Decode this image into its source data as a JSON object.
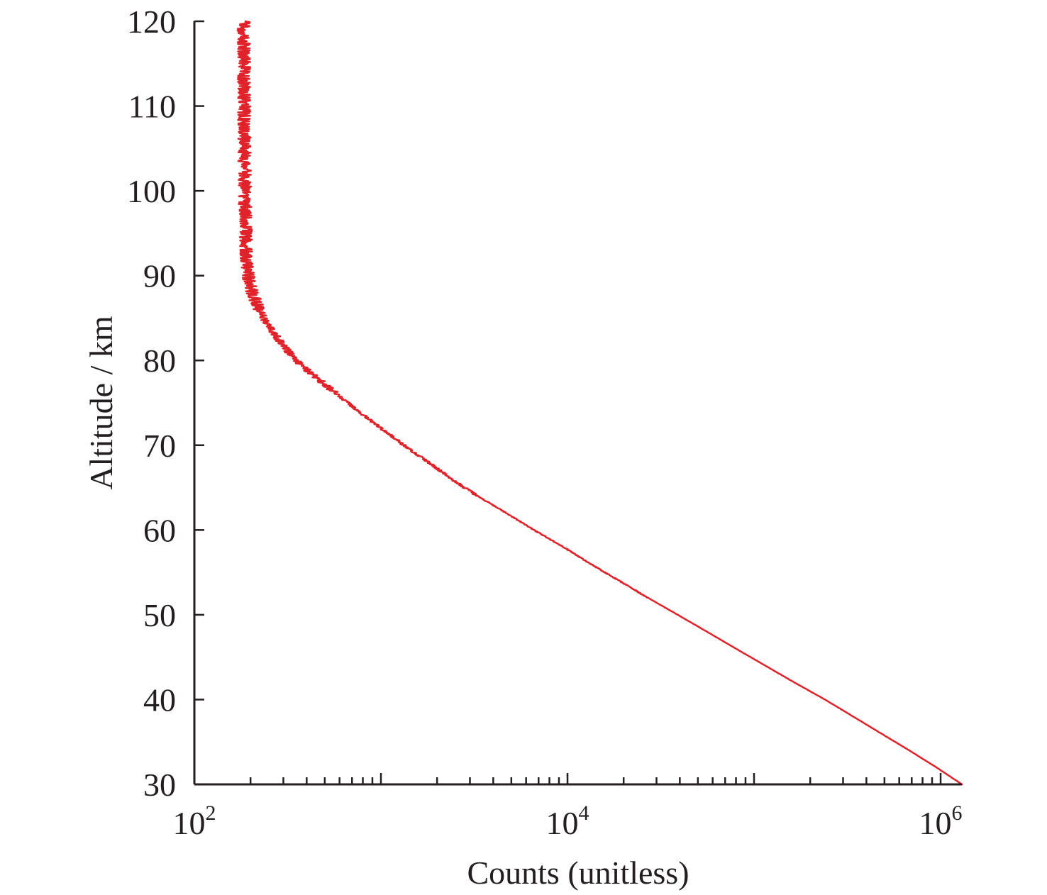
{
  "chart_data": {
    "type": "line",
    "title": "",
    "xlabel": "Counts (unitless)",
    "ylabel": "Altitude / km",
    "x_scale": "log",
    "xlim": [
      100,
      1300000
    ],
    "ylim": [
      30,
      120
    ],
    "grid": false,
    "x_ticks": [
      {
        "value": 100,
        "base": "10",
        "exp": "2"
      },
      {
        "value": 10000,
        "base": "10",
        "exp": "4"
      },
      {
        "value": 1000000,
        "base": "10",
        "exp": "6"
      }
    ],
    "y_ticks": [
      "30",
      "40",
      "50",
      "60",
      "70",
      "80",
      "90",
      "100",
      "110",
      "120"
    ],
    "series": [
      {
        "color": "#e0232a",
        "points": [
          [
            1300000,
            30
          ],
          [
            950000,
            32
          ],
          [
            680000,
            34
          ],
          [
            480000,
            36
          ],
          [
            340000,
            38
          ],
          [
            240000,
            40
          ],
          [
            165000,
            42
          ],
          [
            115000,
            44
          ],
          [
            80000,
            46
          ],
          [
            56000,
            48
          ],
          [
            39000,
            50
          ],
          [
            27000,
            52
          ],
          [
            19000,
            54
          ],
          [
            13300,
            56
          ],
          [
            9500,
            58
          ],
          [
            6600,
            60
          ],
          [
            4700,
            62
          ],
          [
            3300,
            64
          ],
          [
            2400,
            66
          ],
          [
            1800,
            68
          ],
          [
            1330,
            70
          ],
          [
            1000,
            72
          ],
          [
            760,
            74
          ],
          [
            580,
            76
          ],
          [
            450,
            78
          ],
          [
            350,
            80
          ],
          [
            295,
            82
          ],
          [
            250,
            84
          ],
          [
            222,
            86
          ],
          [
            205,
            88
          ],
          [
            195,
            90
          ],
          [
            191,
            92
          ],
          [
            189,
            94
          ],
          [
            188,
            96
          ],
          [
            187,
            98
          ],
          [
            187,
            100
          ],
          [
            186,
            102
          ],
          [
            186,
            104
          ],
          [
            186,
            106
          ],
          [
            185,
            108
          ],
          [
            185,
            110
          ],
          [
            185,
            112
          ],
          [
            185,
            114
          ],
          [
            185,
            116
          ],
          [
            184,
            118
          ],
          [
            184,
            120
          ]
        ]
      }
    ]
  }
}
